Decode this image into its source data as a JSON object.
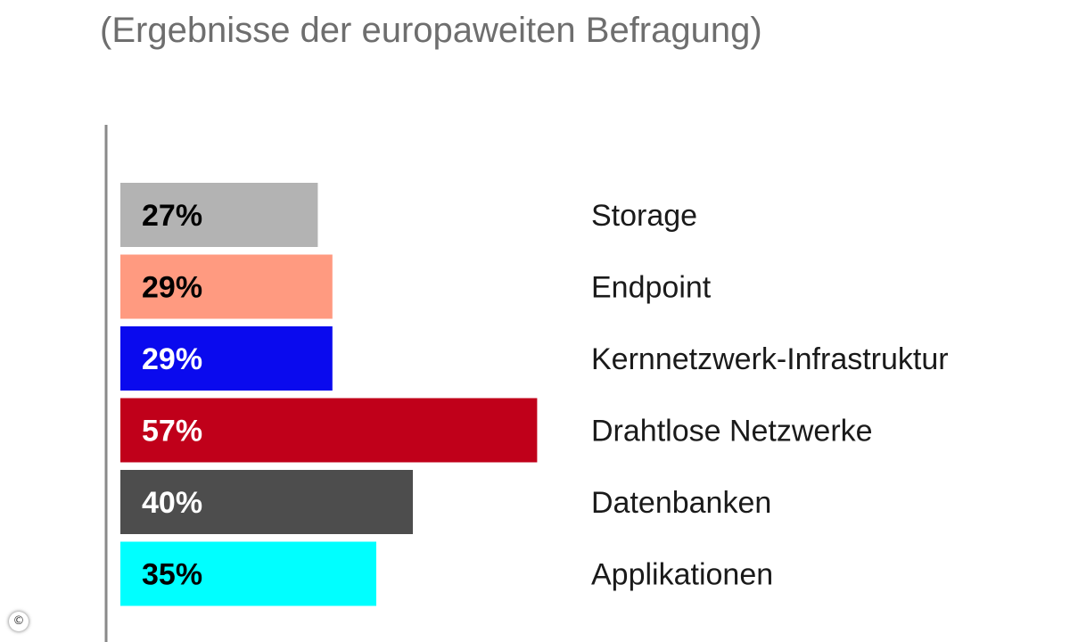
{
  "chart_data": {
    "type": "bar",
    "orientation": "horizontal",
    "subtitle": "(Ergebnisse der europaweiten Befragung)",
    "categories": [
      "Storage",
      "Endpoint",
      "Kernnetzwerk-Infrastruktur",
      "Drahtlose Netzwerke",
      "Datenbanken",
      "Applikationen"
    ],
    "values": [
      27,
      29,
      29,
      57,
      40,
      35
    ],
    "value_labels": [
      "27%",
      "29%",
      "29%",
      "57%",
      "40%",
      "35%"
    ],
    "colors": [
      "#b3b3b3",
      "#ff9a80",
      "#0a0aee",
      "#c0001a",
      "#4d4d4d",
      "#00ffff"
    ],
    "label_colors": [
      "#000000",
      "#000000",
      "#ffffff",
      "#ffffff",
      "#ffffff",
      "#000000"
    ],
    "xlim": [
      0,
      100
    ],
    "grid": false,
    "legend": "none"
  },
  "copyright_symbol": "©"
}
